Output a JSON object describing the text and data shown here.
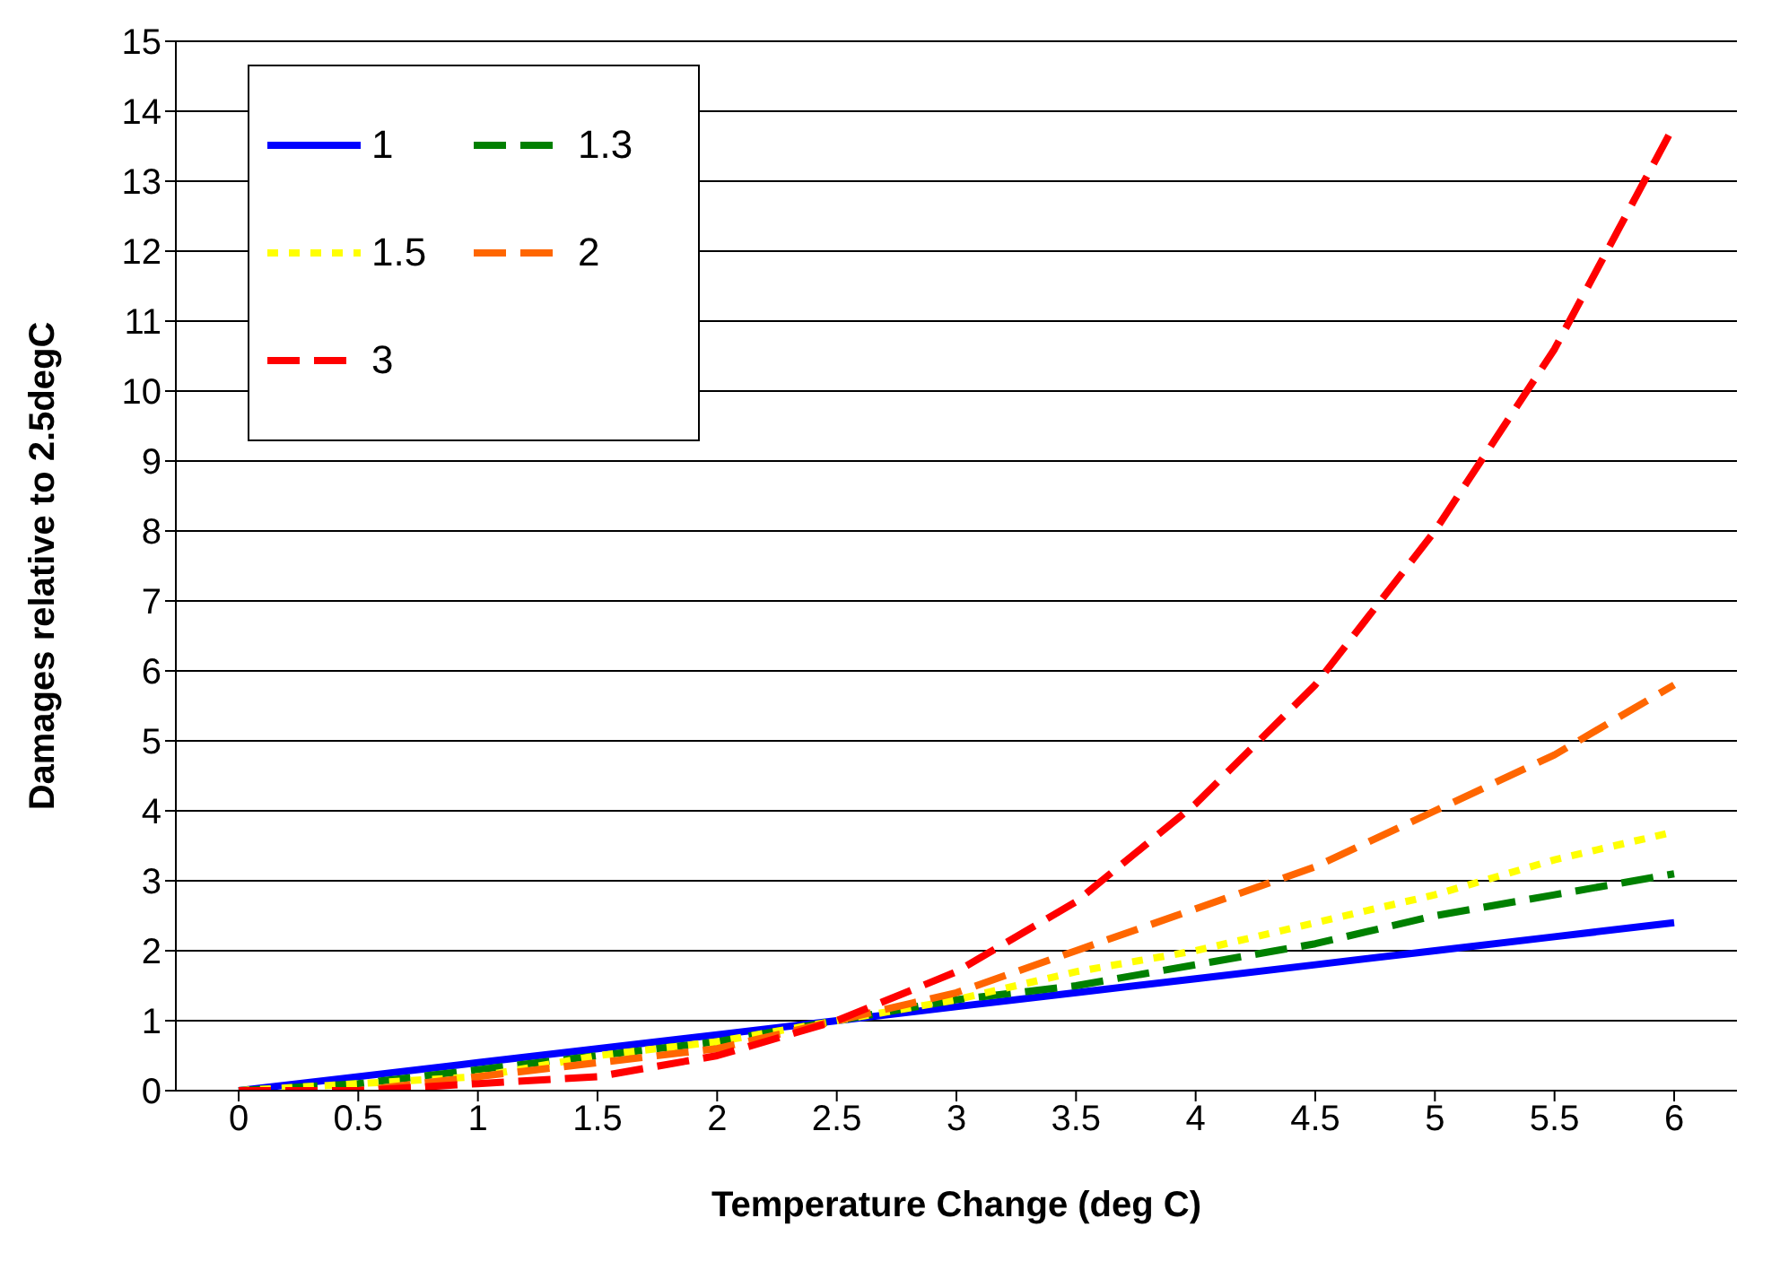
{
  "chart_data": {
    "type": "line",
    "xlabel": "Temperature Change (deg C)",
    "ylabel": "Damages relative to 2.5degC",
    "categories": [
      "0",
      "0.5",
      "1",
      "1.5",
      "2",
      "2.5",
      "3",
      "3.5",
      "4",
      "4.5",
      "5",
      "5.5",
      "6"
    ],
    "series": [
      {
        "name": "1",
        "color": "#0000ff",
        "line_style": "solid",
        "values": [
          0,
          0.2,
          0.4,
          0.6,
          0.8,
          1,
          1.2,
          1.4,
          1.6,
          1.8,
          2,
          2.2,
          2.4
        ]
      },
      {
        "name": "1.3",
        "color": "#008000",
        "line_style": "dashed",
        "values": [
          0,
          0.1,
          0.3,
          0.5,
          0.7,
          1,
          1.3,
          1.5,
          1.8,
          2.1,
          2.5,
          2.8,
          3.1
        ]
      },
      {
        "name": "1.5",
        "color": "#ffff00",
        "line_style": "dotted",
        "values": [
          0,
          0.1,
          0.2,
          0.5,
          0.7,
          1,
          1.3,
          1.7,
          2,
          2.4,
          2.8,
          3.3,
          3.7
        ]
      },
      {
        "name": "2",
        "color": "#ff6600",
        "line_style": "dashed",
        "values": [
          0,
          0,
          0.2,
          0.4,
          0.6,
          1,
          1.4,
          2,
          2.6,
          3.2,
          4,
          4.8,
          5.8
        ]
      },
      {
        "name": "3",
        "color": "#ff0000",
        "line_style": "dashed",
        "values": [
          0,
          0,
          0.1,
          0.2,
          0.5,
          1,
          1.7,
          2.7,
          4.1,
          5.8,
          8,
          10.6,
          13.8
        ]
      }
    ],
    "ylim": [
      0,
      15
    ],
    "yticks": [
      0,
      1,
      2,
      3,
      4,
      5,
      6,
      7,
      8,
      9,
      10,
      11,
      12,
      13,
      14,
      15
    ],
    "grid": "y",
    "legend": "top left",
    "marker": "none"
  }
}
